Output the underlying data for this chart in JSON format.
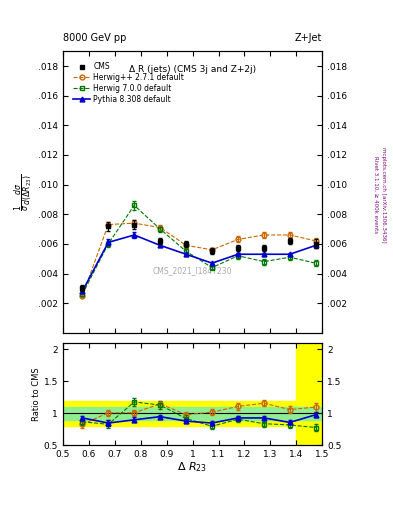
{
  "title_top": "8000 GeV pp",
  "title_top_right": "Z+Jet",
  "plot_title": "Δ R (jets) (CMS 3j and Z+2j)",
  "xlabel": "Δ R_{23}",
  "ylabel_ratio": "Ratio to CMS",
  "watermark": "CMS_2021_I1847230",
  "right_label": "Rivet 3.1.10, ≥ 400k events",
  "arxiv_label": "mcplots.cern.ch [arXiv:1306.3436]",
  "xlim": [
    0.5,
    1.5
  ],
  "ylim_main": [
    0.0,
    0.019
  ],
  "ylim_ratio": [
    0.5,
    2.1
  ],
  "cms_x": [
    0.575,
    0.675,
    0.775,
    0.875,
    0.975,
    1.075,
    1.175,
    1.275,
    1.375,
    1.475
  ],
  "cms_y": [
    0.003,
    0.0072,
    0.0073,
    0.0062,
    0.006,
    0.0055,
    0.0057,
    0.0057,
    0.0062,
    0.006
  ],
  "cms_yerr": [
    0.0002,
    0.0003,
    0.0003,
    0.0002,
    0.0002,
    0.0002,
    0.0002,
    0.0002,
    0.0002,
    0.0003
  ],
  "herwig271_x": [
    0.575,
    0.675,
    0.775,
    0.875,
    0.975,
    1.075,
    1.175,
    1.275,
    1.375,
    1.475
  ],
  "herwig271_y": [
    0.0025,
    0.0073,
    0.0074,
    0.0071,
    0.0059,
    0.0056,
    0.0063,
    0.0066,
    0.0066,
    0.0062
  ],
  "herwig700_x": [
    0.575,
    0.675,
    0.775,
    0.875,
    0.975,
    1.075,
    1.175,
    1.275,
    1.375,
    1.475
  ],
  "herwig700_y": [
    0.0026,
    0.006,
    0.0086,
    0.007,
    0.0055,
    0.0044,
    0.0052,
    0.0048,
    0.0051,
    0.0047
  ],
  "pythia_x": [
    0.575,
    0.675,
    0.775,
    0.875,
    0.975,
    1.075,
    1.175,
    1.275,
    1.375,
    1.475
  ],
  "pythia_y": [
    0.0028,
    0.0061,
    0.0066,
    0.0059,
    0.0053,
    0.0047,
    0.0053,
    0.0053,
    0.0053,
    0.0059
  ],
  "herwig271_yerr": [
    0.0001,
    0.0002,
    0.0002,
    0.0002,
    0.0002,
    0.0001,
    0.0002,
    0.0002,
    0.0002,
    0.0002
  ],
  "herwig700_yerr": [
    0.0001,
    0.0002,
    0.0003,
    0.0002,
    0.0002,
    0.0001,
    0.0002,
    0.0002,
    0.0002,
    0.0002
  ],
  "pythia_yerr": [
    0.0001,
    0.0002,
    0.0002,
    0.0001,
    0.0001,
    0.0001,
    0.0001,
    0.0001,
    0.0001,
    0.0002
  ],
  "ratio_herwig271": [
    0.83,
    1.01,
    1.01,
    1.15,
    0.98,
    1.02,
    1.11,
    1.16,
    1.06,
    1.1
  ],
  "ratio_herwig700": [
    0.87,
    0.83,
    1.18,
    1.13,
    0.92,
    0.8,
    0.91,
    0.84,
    0.82,
    0.78
  ],
  "ratio_pythia": [
    0.93,
    0.85,
    0.9,
    0.95,
    0.88,
    0.85,
    0.93,
    0.93,
    0.86,
    0.98
  ],
  "ratio_herwig271_err": [
    0.05,
    0.05,
    0.05,
    0.05,
    0.05,
    0.05,
    0.05,
    0.05,
    0.05,
    0.07
  ],
  "ratio_herwig700_err": [
    0.05,
    0.06,
    0.06,
    0.06,
    0.05,
    0.05,
    0.05,
    0.05,
    0.05,
    0.06
  ],
  "ratio_pythia_err": [
    0.03,
    0.04,
    0.04,
    0.03,
    0.03,
    0.03,
    0.03,
    0.03,
    0.03,
    0.04
  ],
  "cms_color": "#000000",
  "herwig271_color": "#cc6600",
  "herwig700_color": "#007700",
  "pythia_color": "#0000cc",
  "band_green_inner": 0.1,
  "band_yellow_outer": 0.2,
  "yticks_main": [
    0.002,
    0.004,
    0.006,
    0.008,
    0.01,
    0.012,
    0.014,
    0.016,
    0.018
  ],
  "yticks_ratio": [
    0.5,
    1.0,
    1.5,
    2.0
  ],
  "xticks": [
    0.5,
    0.6,
    0.7,
    0.8,
    0.9,
    1.0,
    1.1,
    1.2,
    1.3,
    1.4,
    1.5
  ]
}
